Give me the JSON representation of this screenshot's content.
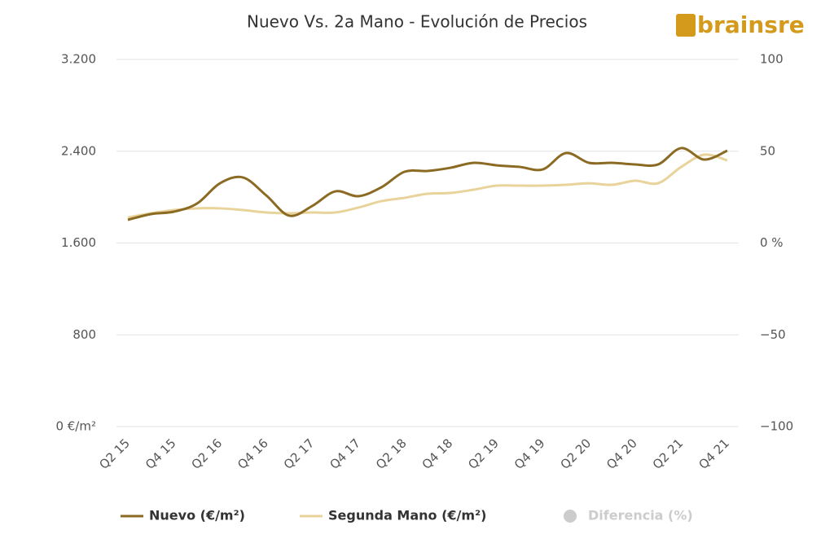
{
  "logo": "brainsre",
  "chart_data": {
    "type": "line",
    "title": "Nuevo Vs. 2a Mano - Evolución de Precios",
    "categories": [
      "Q2 15",
      null,
      "Q4 15",
      null,
      "Q2 16",
      null,
      "Q4 16",
      null,
      "Q2 17",
      null,
      "Q4 17",
      null,
      "Q2 18",
      null,
      "Q4 18",
      null,
      "Q2 19",
      null,
      "Q4 19",
      null,
      "Q2 20",
      null,
      "Q4 20",
      null,
      "Q2 21",
      null,
      "Q4 21"
    ],
    "series": [
      {
        "name": "Nuevo (€/m²)",
        "color": "#8b6b23",
        "values": [
          1802,
          1852,
          1873,
          1944,
          2121,
          2171,
          2015,
          1838,
          1923,
          2050,
          2008,
          2086,
          2221,
          2228,
          2256,
          2299,
          2277,
          2263,
          2242,
          2384,
          2299,
          2299,
          2285,
          2285,
          2427,
          2327,
          2405
        ]
      },
      {
        "name": "Segunda Mano (€/m²)",
        "color": "#e8d39b",
        "values": [
          1823,
          1859,
          1887,
          1902,
          1902,
          1887,
          1866,
          1859,
          1866,
          1866,
          1909,
          1965,
          1994,
          2029,
          2036,
          2065,
          2100,
          2100,
          2100,
          2107,
          2121,
          2107,
          2143,
          2121,
          2263,
          2370,
          2320
        ]
      },
      {
        "name": "Diferencia (%)",
        "color": "#cccccc",
        "axis": "y2",
        "hidden": true
      }
    ],
    "ylim": [
      0,
      3200
    ],
    "yticks": [
      {
        "value": 0,
        "label": "0 €/m²"
      },
      {
        "value": 800,
        "label": "800"
      },
      {
        "value": 1600,
        "label": "1.600"
      },
      {
        "value": 2400,
        "label": "2.400"
      },
      {
        "value": 3200,
        "label": "3.200"
      }
    ],
    "y2lim": [
      -100,
      100
    ],
    "y2ticks": [
      {
        "value": -100,
        "label": "−100"
      },
      {
        "value": -50,
        "label": "−50"
      },
      {
        "value": 0,
        "label": "0 %"
      },
      50,
      100
    ],
    "grid": true,
    "legend": "bottom"
  }
}
